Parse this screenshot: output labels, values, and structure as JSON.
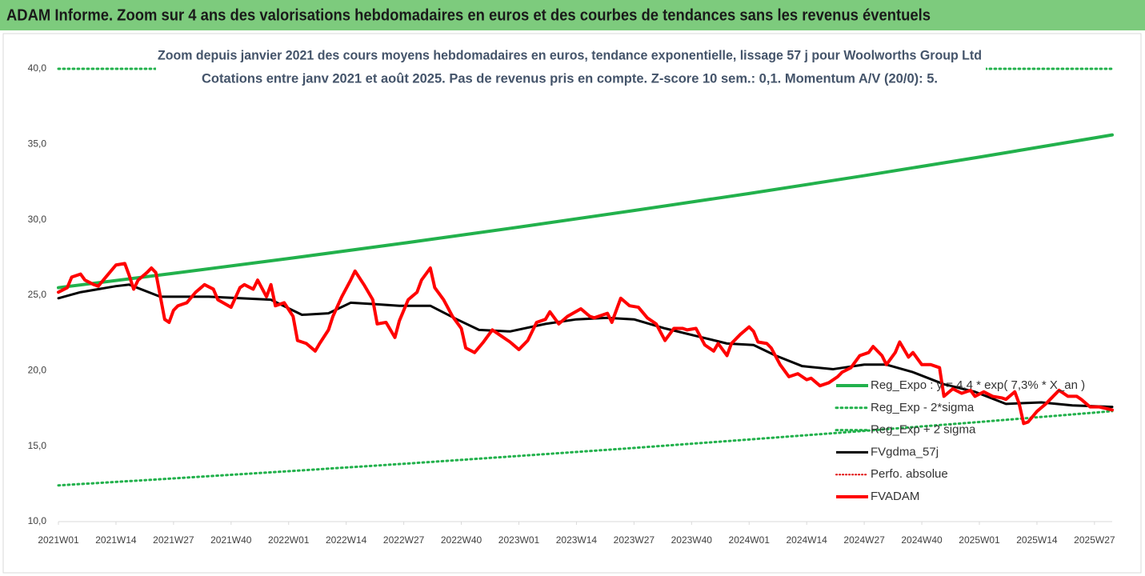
{
  "chart_data": {
    "type": "line",
    "title": "ADAM Informe. Zoom sur 4 ans des valorisations hebdomadaires en euros et des courbes de tendances sans les revenus éventuels",
    "subtitle": [
      "Zoom depuis janvier 2021 des cours moyens hebdomadaires en euros, tendance exponentielle, lissage 57 j pour Woolworths Group Ltd",
      "Cotations entre janv 2021 et août 2025.  Pas de revenus pris en compte. Z-score 10 sem.: 0,1. Momentum A/V (20/0): 5."
    ],
    "xlim": [
      0,
      238
    ],
    "xticks": [
      {
        "value": 0,
        "label": "2021W01"
      },
      {
        "value": 13,
        "label": "2021W14"
      },
      {
        "value": 26,
        "label": "2021W27"
      },
      {
        "value": 39,
        "label": "2021W40"
      },
      {
        "value": 52,
        "label": "2022W01"
      },
      {
        "value": 65,
        "label": "2022W14"
      },
      {
        "value": 78,
        "label": "2022W27"
      },
      {
        "value": 91,
        "label": "2022W40"
      },
      {
        "value": 104,
        "label": "2023W01"
      },
      {
        "value": 117,
        "label": "2023W14"
      },
      {
        "value": 130,
        "label": "2023W27"
      },
      {
        "value": 143,
        "label": "2023W40"
      },
      {
        "value": 156,
        "label": "2024W01"
      },
      {
        "value": 169,
        "label": "2024W14"
      },
      {
        "value": 182,
        "label": "2024W27"
      },
      {
        "value": 195,
        "label": "2024W40"
      },
      {
        "value": 208,
        "label": "2025W01"
      },
      {
        "value": 221,
        "label": "2025W14"
      },
      {
        "value": 234,
        "label": "2025W27"
      }
    ],
    "ylim": [
      10,
      40
    ],
    "yticks": [
      {
        "value": 10,
        "label": "10,0"
      },
      {
        "value": 15,
        "label": "15,0"
      },
      {
        "value": 20,
        "label": "20,0"
      },
      {
        "value": 25,
        "label": "25,0"
      },
      {
        "value": 30,
        "label": "30,0"
      },
      {
        "value": 35,
        "label": "35,0"
      },
      {
        "value": 40,
        "label": "40,0"
      }
    ],
    "grid": false,
    "legend": "right",
    "series": [
      {
        "name": "Reg_Expo : y = 4,4 * exp( 7,3% * X_an )",
        "color": "#22b14c",
        "line_style": "solid",
        "width": 4,
        "x": [
          0,
          26,
          52,
          78,
          104,
          130,
          156,
          182,
          208,
          234,
          238
        ],
        "values": [
          25.5,
          26.45,
          27.43,
          28.45,
          29.51,
          30.61,
          31.74,
          32.92,
          34.15,
          35.42,
          35.62
        ]
      },
      {
        "name": "Reg_Exp - 2*sigma",
        "color": "#22b14c",
        "line_style": "dotted",
        "width": 3,
        "x": [
          0,
          26,
          52,
          78,
          104,
          130,
          156,
          182,
          208,
          234,
          238
        ],
        "values": [
          12.4,
          12.86,
          13.34,
          13.83,
          14.35,
          14.88,
          15.44,
          16.01,
          16.6,
          17.22,
          17.32
        ]
      },
      {
        "name": "Reg_Exp + 2 sigma",
        "color": "#22b14c",
        "line_style": "dotted",
        "width": 3,
        "x": [
          0,
          238
        ],
        "values": [
          40,
          40
        ]
      },
      {
        "name": "FVgdma_57j",
        "color": "#000000",
        "line_style": "solid",
        "width": 3,
        "x": [
          0,
          5,
          13,
          16,
          23,
          34,
          41,
          48,
          55,
          61,
          66,
          72,
          77,
          84,
          90,
          95,
          102,
          110,
          117,
          124,
          130,
          137,
          144,
          151,
          157,
          162,
          168,
          175,
          182,
          187,
          193,
          200,
          207,
          214,
          222,
          229,
          238
        ],
        "values": [
          24.8,
          25.2,
          25.6,
          25.7,
          24.9,
          24.9,
          24.8,
          24.7,
          23.7,
          23.8,
          24.5,
          24.4,
          24.3,
          24.3,
          23.4,
          22.7,
          22.6,
          23.1,
          23.4,
          23.5,
          23.4,
          22.8,
          22.3,
          21.8,
          21.7,
          21.0,
          20.3,
          20.1,
          20.4,
          20.4,
          19.9,
          19.1,
          18.6,
          17.8,
          17.9,
          17.7,
          17.6
        ]
      },
      {
        "name": "Perfo. absolue",
        "color": "#e00000",
        "line_style": "dotted",
        "width": 2,
        "x": [],
        "values": []
      },
      {
        "name": "FVADAM",
        "color": "#ff0000",
        "line_style": "solid",
        "width": 4,
        "x": [
          0,
          2,
          3,
          5,
          6,
          8,
          9,
          11,
          13,
          15,
          16,
          17,
          18,
          20,
          21,
          22,
          24,
          25,
          26,
          27,
          29,
          31,
          33,
          35,
          36,
          39,
          41,
          42,
          44,
          45,
          47,
          48,
          49,
          51,
          53,
          54,
          56,
          58,
          59,
          61,
          62,
          64,
          66,
          67,
          69,
          71,
          72,
          74,
          76,
          77,
          79,
          81,
          82,
          84,
          85,
          87,
          89,
          91,
          92,
          94,
          96,
          98,
          100,
          102,
          104,
          106,
          108,
          110,
          111,
          113,
          115,
          118,
          120,
          121,
          124,
          125,
          127,
          129,
          131,
          133,
          135,
          137,
          139,
          141,
          142,
          144,
          146,
          148,
          149,
          151,
          152,
          154,
          156,
          157,
          158,
          160,
          161,
          163,
          165,
          167,
          169,
          170,
          172,
          174,
          176,
          177,
          179,
          181,
          183,
          184,
          186,
          187,
          189,
          190,
          192,
          193,
          195,
          197,
          199,
          200,
          202,
          204,
          206,
          207,
          209,
          211,
          213,
          214,
          216,
          217,
          218,
          219,
          221,
          223,
          224,
          226,
          228,
          230,
          231,
          233,
          235,
          238
        ],
        "values": [
          25.2,
          25.5,
          26.2,
          26.4,
          26.0,
          25.7,
          25.6,
          26.3,
          27.0,
          27.1,
          26.3,
          25.4,
          26.0,
          26.5,
          26.8,
          26.5,
          23.4,
          23.2,
          24.0,
          24.3,
          24.5,
          25.2,
          25.7,
          25.4,
          24.7,
          24.2,
          25.5,
          25.7,
          25.4,
          26.0,
          24.9,
          25.7,
          24.3,
          24.5,
          23.6,
          22.0,
          21.8,
          21.3,
          21.8,
          22.7,
          23.6,
          24.9,
          26.0,
          26.6,
          25.7,
          24.7,
          23.1,
          23.2,
          22.2,
          23.3,
          24.7,
          25.2,
          26.0,
          26.8,
          25.5,
          24.7,
          23.6,
          22.8,
          21.5,
          21.2,
          21.9,
          22.7,
          22.3,
          21.9,
          21.4,
          22.0,
          23.2,
          23.4,
          23.9,
          23.1,
          23.6,
          24.1,
          23.6,
          23.5,
          23.8,
          23.2,
          24.8,
          24.3,
          24.2,
          23.5,
          23.1,
          22.0,
          22.8,
          22.8,
          22.7,
          22.8,
          21.7,
          21.3,
          21.8,
          21.0,
          21.8,
          22.4,
          22.9,
          22.6,
          21.9,
          21.8,
          21.5,
          20.4,
          19.6,
          19.8,
          19.4,
          19.5,
          19.0,
          19.2,
          19.6,
          19.9,
          20.2,
          21.0,
          21.2,
          21.6,
          21.0,
          20.4,
          21.2,
          21.9,
          20.9,
          21.2,
          20.4,
          20.4,
          20.2,
          18.3,
          18.8,
          18.5,
          18.7,
          18.3,
          18.6,
          18.3,
          18.2,
          18.1,
          18.6,
          17.8,
          16.5,
          16.6,
          17.3,
          17.8,
          18.1,
          18.7,
          18.3,
          18.3,
          18.1,
          17.6,
          17.6,
          17.4
        ]
      }
    ]
  }
}
